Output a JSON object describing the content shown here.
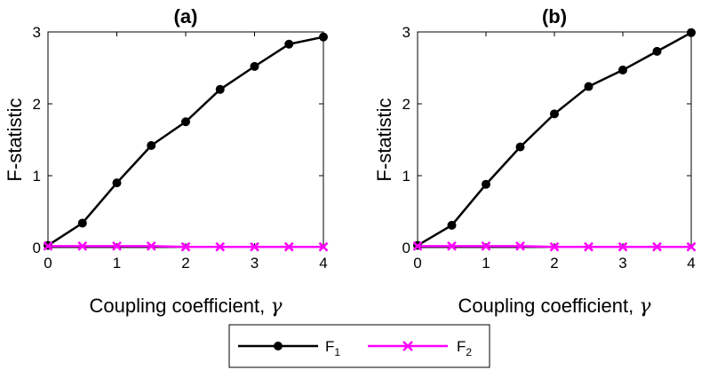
{
  "chart_data": [
    {
      "type": "line",
      "title": "(a)",
      "xlabel": "Coupling coefficient,",
      "xlabel_symbol": "γ",
      "ylabel": "F-statistic",
      "xlim": [
        0,
        4
      ],
      "ylim": [
        0,
        3
      ],
      "xticks": [
        "0",
        "1",
        "2",
        "3",
        "4"
      ],
      "yticks": [
        "0",
        "1",
        "2",
        "3"
      ],
      "grid": false,
      "series": [
        {
          "name": "F1",
          "color": "#000000",
          "marker": "circle",
          "x": [
            0,
            0.5,
            1,
            1.5,
            2,
            2.5,
            3,
            3.5,
            4
          ],
          "y": [
            0.03,
            0.34,
            0.9,
            1.42,
            1.75,
            2.2,
            2.52,
            2.83,
            2.93
          ]
        },
        {
          "name": "F2",
          "color": "#ff00ff",
          "marker": "x",
          "x": [
            0,
            0.5,
            1,
            1.5,
            2,
            2.5,
            3,
            3.5,
            4
          ],
          "y": [
            0.02,
            0.02,
            0.02,
            0.02,
            0.01,
            0.01,
            0.01,
            0.01,
            0.01
          ]
        }
      ]
    },
    {
      "type": "line",
      "title": "(b)",
      "xlabel": "Coupling coefficient,",
      "xlabel_symbol": "γ",
      "ylabel": "F-statistic",
      "xlim": [
        0,
        4
      ],
      "ylim": [
        0,
        3
      ],
      "xticks": [
        "0",
        "1",
        "2",
        "3",
        "4"
      ],
      "yticks": [
        "0",
        "1",
        "2",
        "3"
      ],
      "grid": false,
      "series": [
        {
          "name": "F1",
          "color": "#000000",
          "marker": "circle",
          "x": [
            0,
            0.5,
            1,
            1.5,
            2,
            2.5,
            3,
            3.5,
            4
          ],
          "y": [
            0.03,
            0.31,
            0.88,
            1.4,
            1.86,
            2.24,
            2.47,
            2.73,
            2.99
          ]
        },
        {
          "name": "F2",
          "color": "#ff00ff",
          "marker": "x",
          "x": [
            0,
            0.5,
            1,
            1.5,
            2,
            2.5,
            3,
            3.5,
            4
          ],
          "y": [
            0.02,
            0.02,
            0.02,
            0.02,
            0.01,
            0.01,
            0.01,
            0.01,
            0.01
          ]
        }
      ]
    }
  ],
  "legend": {
    "placement": "bottom-center",
    "entries": [
      {
        "label": "F",
        "subscript": "1",
        "color": "#000000",
        "marker": "circle"
      },
      {
        "label": "F",
        "subscript": "2",
        "color": "#ff00ff",
        "marker": "x"
      }
    ]
  }
}
